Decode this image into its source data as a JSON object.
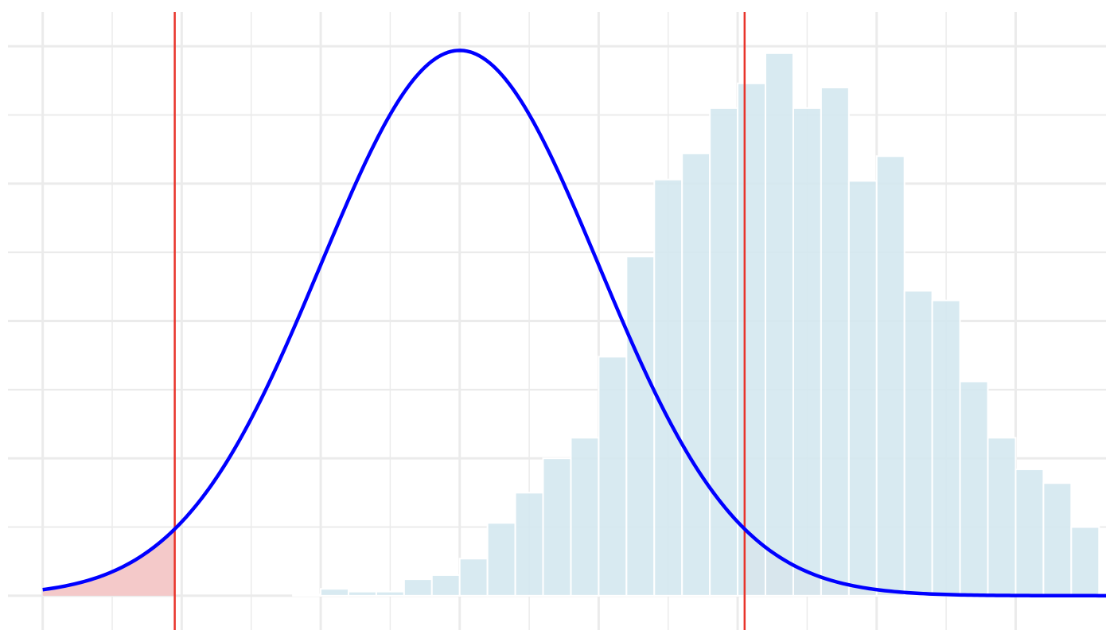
{
  "chart_data": {
    "type": "bar",
    "title": "",
    "xlabel": "",
    "ylabel": "",
    "grid": true,
    "legend": "none",
    "colors": {
      "histogram_fill": "#d4e8ef",
      "histogram_edge": "#ffffff",
      "curve": "#0000ff",
      "critical_lines": "#e8342b",
      "tail_shading": "#f4c9c9",
      "grid": "#ebebeb",
      "background": "#ffffff"
    },
    "xlim": [
      -3.25,
      4.65
    ],
    "ylim": [
      -0.0025,
      0.0425
    ],
    "y_gridlines": [
      0,
      0.005,
      0.01,
      0.015,
      0.02,
      0.025,
      0.03,
      0.035,
      0.04
    ],
    "x_gridlines": [
      -3,
      -2,
      -1,
      0,
      1,
      2,
      3,
      4
    ],
    "bin_width": 0.2,
    "histogram": {
      "bin_centers": [
        -1.1,
        -0.9,
        -0.7,
        -0.5,
        -0.3,
        -0.1,
        0.1,
        0.3,
        0.5,
        0.7,
        0.9,
        1.1,
        1.3,
        1.5,
        1.7,
        1.9,
        2.1,
        2.3,
        2.5,
        2.7,
        2.9,
        3.1,
        3.3,
        3.5,
        3.7,
        3.9,
        4.1,
        4.3,
        4.5
      ],
      "values": [
        0.0001,
        0.0005,
        0.0003,
        0.0003,
        0.0012,
        0.0015,
        0.0027,
        0.0053,
        0.0075,
        0.01,
        0.0115,
        0.0174,
        0.0247,
        0.0303,
        0.0322,
        0.0355,
        0.0373,
        0.0395,
        0.0355,
        0.037,
        0.0302,
        0.032,
        0.0222,
        0.0215,
        0.0156,
        0.0115,
        0.0092,
        0.0082,
        0.005
      ]
    },
    "curve": {
      "distribution": "normal",
      "mean": 0,
      "sd": 1,
      "scale": 0.0397,
      "x_range": [
        -3,
        6.18
      ]
    },
    "critical_values": [
      -2.05,
      2.05
    ]
  }
}
